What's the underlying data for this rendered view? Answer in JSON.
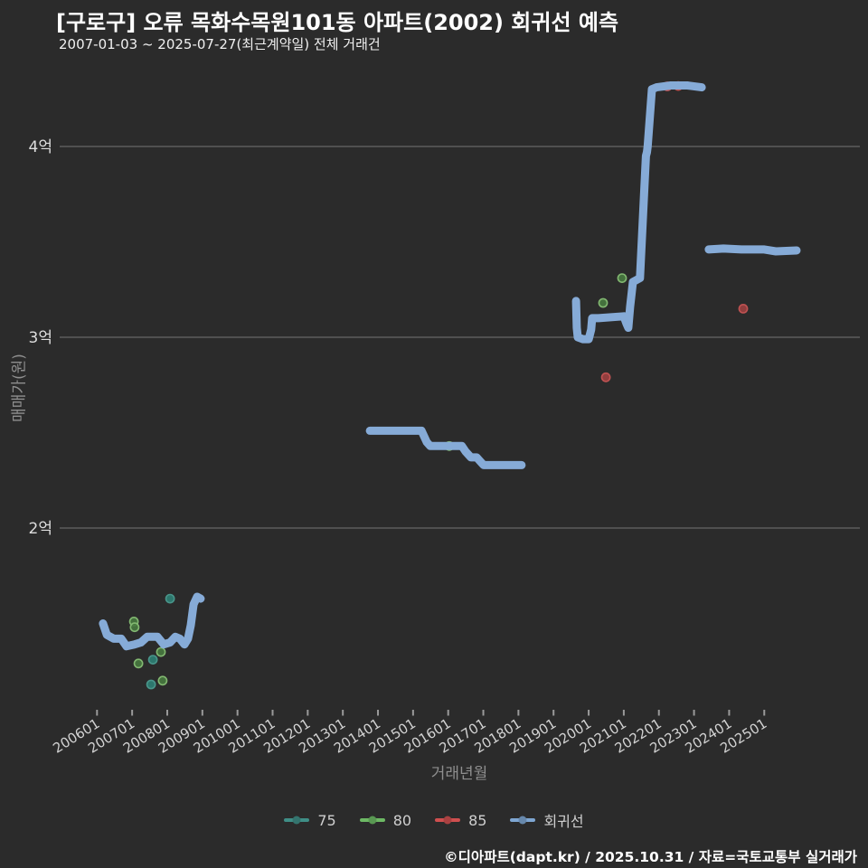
{
  "title": "[구로구] 오류 목화수목원101동 아파트(2002) 회귀선 예측",
  "subtitle": "2007-01-03 ~ 2025-07-27(최근계약일) 전체 거래건",
  "footer": {
    "text": "©디아파트(dapt.kr) / 2025.10.31 / 자료=국토교통부 실거래가"
  },
  "colors": {
    "background": "#2b2b2b",
    "gridline": "#757575",
    "tick_mark": "#9a9a9a",
    "tick_label": "#d2d2d2",
    "axis_title": "#8f8f8f",
    "series_75": "#3f8e86",
    "series_80": "#6db964",
    "series_85": "#cf4f4f",
    "regression": "#86abd7"
  },
  "legend": {
    "items": [
      {
        "label": "75",
        "color": "#3f8e86"
      },
      {
        "label": "80",
        "color": "#6db964"
      },
      {
        "label": "85",
        "color": "#cf4f4f"
      },
      {
        "label": "회귀선",
        "color": "#7ea6d2"
      }
    ]
  },
  "chart_data": {
    "type": "line",
    "title": "[구로구] 오류 목화수목원101동 아파트(2002) 회귀선 예측",
    "xlabel": "거래년월",
    "ylabel": "매매가(원)",
    "x_ticks": [
      "200601",
      "200701",
      "200801",
      "200901",
      "201001",
      "201101",
      "201201",
      "201301",
      "201401",
      "201501",
      "201601",
      "201701",
      "201801",
      "201901",
      "202001",
      "202101",
      "202201",
      "202301",
      "202401",
      "202501"
    ],
    "x_tick_start_year": 2006,
    "y_ticks": [
      {
        "label": "2억",
        "value": 2
      },
      {
        "label": "3억",
        "value": 3
      },
      {
        "label": "4억",
        "value": 4
      }
    ],
    "ylim": [
      1.0,
      4.45
    ],
    "grid": "horizontal-only",
    "legend_position": "bottom-center",
    "unit": "억원",
    "series": [
      {
        "name": "75",
        "type": "scatter",
        "fill": "#2e7f74",
        "edge": "#49958a",
        "points": [
          [
            2008.08,
            1.63
          ],
          [
            2007.59,
            1.31
          ],
          [
            2007.54,
            1.18
          ]
        ]
      },
      {
        "name": "80",
        "type": "scatter",
        "fill": "#47793f",
        "edge": "#82b871",
        "points": [
          [
            2007.05,
            1.51
          ],
          [
            2007.07,
            1.48
          ],
          [
            2007.82,
            1.35
          ],
          [
            2007.18,
            1.29
          ],
          [
            2007.87,
            1.2
          ],
          [
            2016.03,
            2.43
          ],
          [
            2020.41,
            3.18
          ],
          [
            2020.95,
            3.31
          ]
        ]
      },
      {
        "name": "85",
        "type": "scatter",
        "fill": "#9c4040",
        "edge": "#bf5252",
        "points": [
          [
            2020.49,
            2.79
          ],
          [
            2024.4,
            3.15
          ],
          [
            2022.24,
            4.315
          ],
          [
            2022.55,
            4.317
          ]
        ]
      },
      {
        "name": "회귀선",
        "type": "line",
        "color": "#86abd7",
        "width": 9,
        "segments": [
          [
            [
              2006.17,
              1.5
            ],
            [
              2006.28,
              1.44
            ],
            [
              2006.48,
              1.42
            ],
            [
              2006.69,
              1.42
            ],
            [
              2006.84,
              1.38
            ],
            [
              2007.07,
              1.39
            ],
            [
              2007.25,
              1.4
            ],
            [
              2007.43,
              1.43
            ],
            [
              2007.72,
              1.43
            ],
            [
              2007.9,
              1.39
            ],
            [
              2008.08,
              1.4
            ],
            [
              2008.23,
              1.43
            ],
            [
              2008.36,
              1.42
            ],
            [
              2008.49,
              1.39
            ],
            [
              2008.59,
              1.42
            ],
            [
              2008.67,
              1.49
            ],
            [
              2008.75,
              1.6
            ],
            [
              2008.85,
              1.64
            ],
            [
              2008.95,
              1.63
            ]
          ],
          [
            [
              2013.77,
              2.51
            ],
            [
              2015.24,
              2.51
            ],
            [
              2015.39,
              2.45
            ],
            [
              2015.49,
              2.43
            ],
            [
              2016.39,
              2.43
            ],
            [
              2016.5,
              2.4
            ],
            [
              2016.65,
              2.37
            ],
            [
              2016.81,
              2.37
            ],
            [
              2016.91,
              2.35
            ],
            [
              2017.01,
              2.33
            ],
            [
              2018.09,
              2.33
            ]
          ],
          [
            [
              2019.64,
              3.19
            ],
            [
              2019.66,
              3.05
            ],
            [
              2019.69,
              3.0
            ],
            [
              2019.84,
              2.99
            ],
            [
              2020.0,
              2.99
            ],
            [
              2020.07,
              3.04
            ],
            [
              2020.1,
              3.1
            ],
            [
              2020.28,
              3.1
            ],
            [
              2021.0,
              3.11
            ],
            [
              2021.08,
              3.07
            ],
            [
              2021.13,
              3.05
            ],
            [
              2021.18,
              3.16
            ],
            [
              2021.26,
              3.29
            ],
            [
              2021.36,
              3.3
            ],
            [
              2021.46,
              3.31
            ],
            [
              2021.63,
              3.95
            ],
            [
              2021.66,
              3.97
            ],
            [
              2021.68,
              4.0
            ],
            [
              2021.8,
              4.3
            ],
            [
              2021.93,
              4.31
            ],
            [
              2022.34,
              4.32
            ],
            [
              2022.81,
              4.32
            ],
            [
              2023.22,
              4.31
            ]
          ],
          [
            [
              2023.42,
              3.46
            ],
            [
              2023.84,
              3.465
            ],
            [
              2024.35,
              3.46
            ],
            [
              2025.0,
              3.46
            ],
            [
              2025.33,
              3.45
            ],
            [
              2025.92,
              3.455
            ]
          ]
        ]
      }
    ]
  }
}
